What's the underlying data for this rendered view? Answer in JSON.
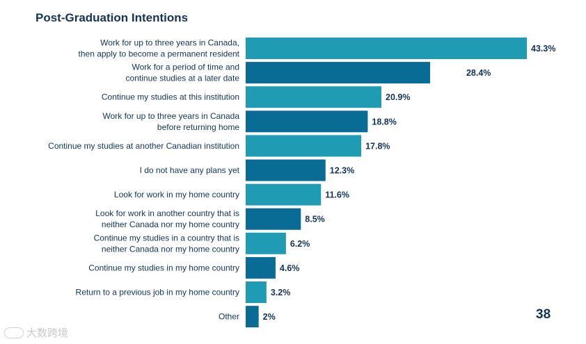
{
  "header": {
    "title": "Post-Graduation Intentions"
  },
  "page": {
    "number": "38"
  },
  "watermark": {
    "text": "大数跨境"
  },
  "colors": {
    "light_bar": "#1f9bb3",
    "dark_bar": "#086c94",
    "text": "#12345a"
  },
  "chart_data": {
    "type": "bar",
    "orientation": "horizontal",
    "title": "Post-Graduation Intentions",
    "value_suffix": "%",
    "xlim": [
      0,
      43.3
    ],
    "categories": [
      [
        "Work for up to three years in Canada,",
        "then apply to become a permanent resident"
      ],
      [
        "Work for a period of time and",
        "continue studies at a later date"
      ],
      [
        "Continue my studies at this institution"
      ],
      [
        "Work for up to three years in Canada",
        "before returning home"
      ],
      [
        "Continue my studies at another Canadian institution"
      ],
      [
        "I do not have any plans yet"
      ],
      [
        "Look for work in my home country"
      ],
      [
        "Look for work in another country that is",
        "neither Canada nor my home country"
      ],
      [
        "Continue my studies in a country that is",
        "neither Canada nor my home country"
      ],
      [
        "Continue my studies in my home country"
      ],
      [
        "Return to a previous job in my home country"
      ],
      [
        "Other"
      ]
    ],
    "values": [
      43.3,
      28.4,
      20.9,
      18.8,
      17.8,
      12.3,
      11.6,
      8.5,
      6.2,
      4.6,
      3.2,
      2
    ],
    "value_labels": [
      "43.3%",
      "28.4%",
      "20.9%",
      "18.8%",
      "17.8%",
      "12.3%",
      "11.6%",
      "8.5%",
      "6.2%",
      "4.6%",
      "3.2%",
      "2%"
    ]
  }
}
